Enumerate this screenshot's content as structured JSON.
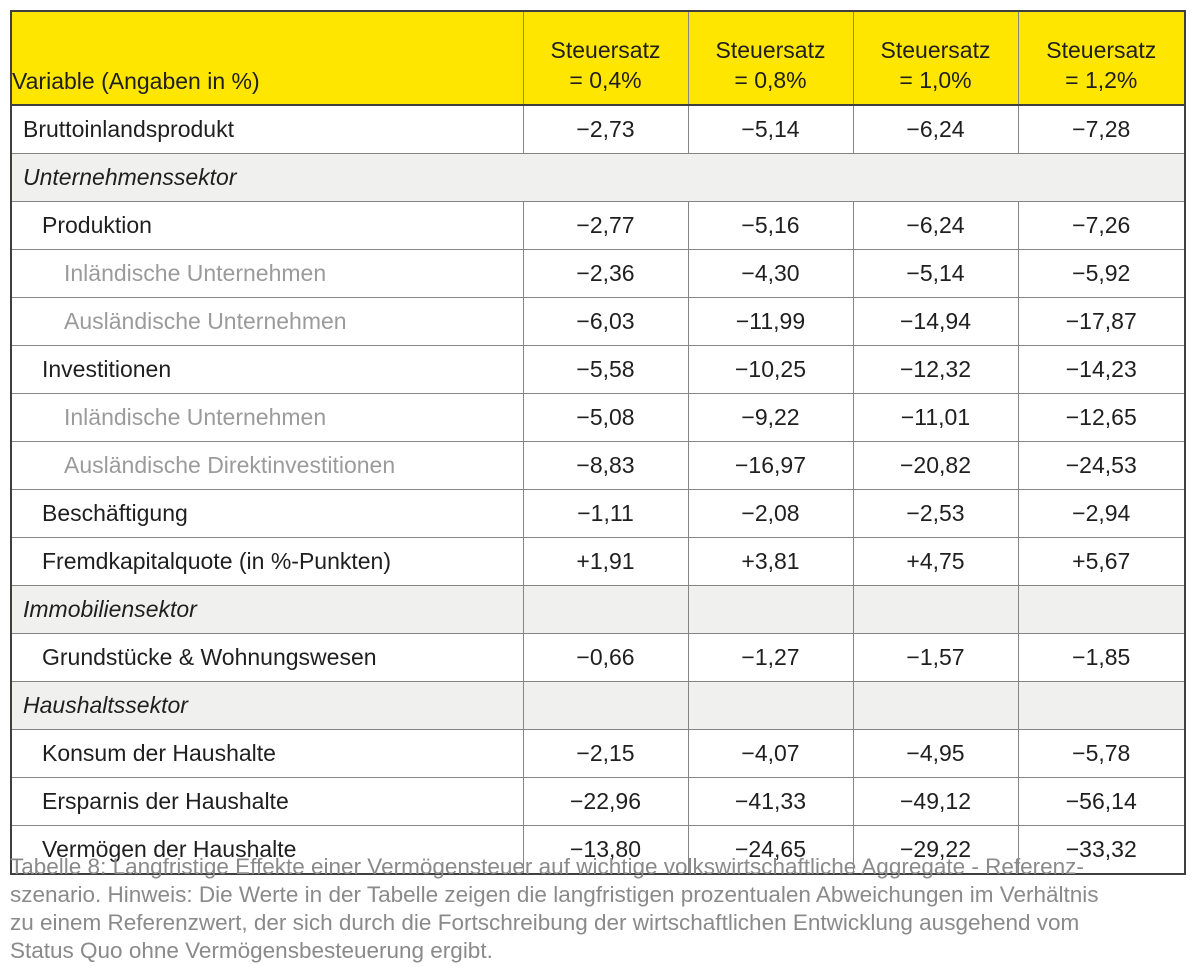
{
  "table": {
    "header": {
      "variable_label": "Variable (Angaben in %)",
      "columns": [
        "Steuersatz\n= 0,4%",
        "Steuersatz\n= 0,8%",
        "Steuersatz\n= 1,0%",
        "Steuersatz\n= 1,2%"
      ]
    },
    "rows": [
      {
        "type": "data",
        "indent": 1,
        "muted": false,
        "label": "Bruttoinlandsprodukt",
        "values": [
          "−2,73",
          "−5,14",
          "−6,24",
          "−7,28"
        ]
      },
      {
        "type": "section_span",
        "label": "Unternehmenssektor"
      },
      {
        "type": "data",
        "indent": 2,
        "muted": false,
        "label": "Produktion",
        "values": [
          "−2,77",
          "−5,16",
          "−6,24",
          "−7,26"
        ]
      },
      {
        "type": "data",
        "indent": 3,
        "muted": true,
        "label": "Inländische Unternehmen",
        "values": [
          "−2,36",
          "−4,30",
          "−5,14",
          "−5,92"
        ]
      },
      {
        "type": "data",
        "indent": 3,
        "muted": true,
        "label": "Ausländische Unternehmen",
        "values": [
          "−6,03",
          "−11,99",
          "−14,94",
          "−17,87"
        ]
      },
      {
        "type": "data",
        "indent": 2,
        "muted": false,
        "label": "Investitionen",
        "values": [
          "−5,58",
          "−10,25",
          "−12,32",
          "−14,23"
        ]
      },
      {
        "type": "data",
        "indent": 3,
        "muted": true,
        "label": "Inländische Unternehmen",
        "values": [
          "−5,08",
          "−9,22",
          "−11,01",
          "−12,65"
        ]
      },
      {
        "type": "data",
        "indent": 3,
        "muted": true,
        "label": "Ausländische Direktinvestitionen",
        "values": [
          "−8,83",
          "−16,97",
          "−20,82",
          "−24,53"
        ]
      },
      {
        "type": "data",
        "indent": 2,
        "muted": false,
        "label": "Beschäftigung",
        "values": [
          "−1,11",
          "−2,08",
          "−2,53",
          "−2,94"
        ]
      },
      {
        "type": "data",
        "indent": 2,
        "muted": false,
        "label": "Fremdkapitalquote (in %-Punkten)",
        "values": [
          "+1,91",
          "+3,81",
          "+4,75",
          "+5,67"
        ]
      },
      {
        "type": "section_cells",
        "label": "Immobiliensektor",
        "values": [
          "",
          "",
          "",
          ""
        ]
      },
      {
        "type": "data",
        "indent": 2,
        "muted": false,
        "label": "Grundstücke & Wohnungswesen",
        "values": [
          "−0,66",
          "−1,27",
          "−1,57",
          "−1,85"
        ]
      },
      {
        "type": "section_cells",
        "label": "Haushaltssektor",
        "values": [
          "",
          "",
          "",
          ""
        ]
      },
      {
        "type": "data",
        "indent": 2,
        "muted": false,
        "label": "Konsum der Haushalte",
        "values": [
          "−2,15",
          "−4,07",
          "−4,95",
          "−5,78"
        ]
      },
      {
        "type": "data",
        "indent": 2,
        "muted": false,
        "label": "Ersparnis der Haushalte",
        "values": [
          "−22,96",
          "−41,33",
          "−49,12",
          "−56,14"
        ]
      },
      {
        "type": "data",
        "indent": 2,
        "muted": false,
        "label": "Vermögen der Haushalte",
        "values": [
          "−13,80",
          "−24,65",
          "−29,22",
          "−33,32"
        ]
      }
    ]
  },
  "caption": {
    "text": "Tabelle 8: Langfristige Effekte einer Vermögensteuer auf wichtige volkswirtschaftliche Aggregate - Referenz-\nszenario. Hinweis: Die Werte in der Tabelle zeigen die langfristigen prozentualen Abweichungen im Verhältnis\nzu einem Referenzwert, der sich durch die Fortschreibung der wirtschaftlichen Entwicklung ausgehend vom\nStatus Quo ohne Vermögensbesteuerung ergibt."
  },
  "colors": {
    "header_bg": "#ffe600",
    "section_bg": "#f0f0ee",
    "border_outer": "#3f3f3f",
    "border_inner": "#858585",
    "text": "#1f1f1f",
    "muted_text": "#9b9b9b",
    "caption_text": "#8a8a8a"
  }
}
